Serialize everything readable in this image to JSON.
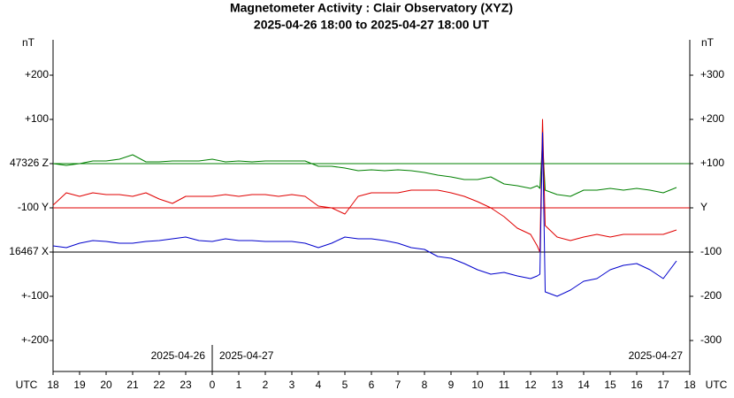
{
  "chart_data": {
    "type": "line",
    "title": "Magnetometer Activity : Clair Observatory (XYZ)",
    "subtitle": "2025-04-26 18:00 to 2025-04-27 18:00 UT",
    "ylabel": "nT",
    "y2label": "nT",
    "xlabel": "UTC",
    "xlim": [
      18,
      42
    ],
    "xticks": [
      18,
      19,
      20,
      21,
      22,
      23,
      {
        "value": 24,
        "label": "0"
      },
      {
        "value": 25,
        "label": "1"
      },
      {
        "value": 26,
        "label": "2"
      },
      {
        "value": 27,
        "label": "3"
      },
      {
        "value": 28,
        "label": "4"
      },
      {
        "value": 29,
        "label": "5"
      },
      {
        "value": 30,
        "label": "6"
      },
      {
        "value": 31,
        "label": "7"
      },
      {
        "value": 32,
        "label": "8"
      },
      {
        "value": 33,
        "label": "9"
      },
      {
        "value": 34,
        "label": "10"
      },
      {
        "value": 35,
        "label": "11"
      },
      {
        "value": 36,
        "label": "12"
      },
      {
        "value": 37,
        "label": "13"
      },
      {
        "value": 38,
        "label": "14"
      },
      {
        "value": 39,
        "label": "15"
      },
      {
        "value": 40,
        "label": "16"
      },
      {
        "value": 41,
        "label": "17"
      },
      {
        "value": 42,
        "label": "18"
      }
    ],
    "ylim": [
      -370,
      380
    ],
    "yticks": [
      {
        "value": 300,
        "label": "+300"
      },
      {
        "value": 200,
        "label": "+200"
      },
      {
        "value": 100,
        "label": "+100"
      },
      {
        "value": 0,
        "label": "Y"
      },
      -100,
      -200,
      -300
    ],
    "left_labels": [
      "+200",
      "+100",
      "47326 Z",
      "-100 Y",
      "16467 X",
      "+-100",
      "+-200"
    ],
    "left_label_colors": [
      "#008000",
      "#008000",
      "#008000",
      "#e00000",
      "#0000cc",
      "#0000cc",
      "#0000cc"
    ],
    "tick_label_color": "#e00000",
    "day_boundary": 24,
    "date_labels": [
      "2025-04-26",
      "2025-04-27",
      "2025-04-27"
    ],
    "x": [
      18,
      18.5,
      19,
      19.5,
      20,
      20.5,
      21,
      21.5,
      22,
      22.5,
      23,
      23.5,
      24,
      24.5,
      25,
      25.5,
      26,
      26.5,
      27,
      27.5,
      28,
      28.5,
      29,
      29.5,
      30,
      30.5,
      31,
      31.5,
      32,
      32.5,
      33,
      33.5,
      34,
      34.5,
      35,
      35.5,
      36,
      36.25,
      36.35,
      36.45,
      36.55,
      37,
      37.5,
      38,
      38.5,
      39,
      39.5,
      40,
      40.5,
      41,
      41.5
    ],
    "series": [
      {
        "name": "Z",
        "color": "#008000",
        "baseline": 100,
        "baseline_color": "#008000",
        "values": [
          100,
          96,
          100,
          106,
          106,
          110,
          120,
          104,
          104,
          106,
          106,
          106,
          110,
          104,
          106,
          104,
          106,
          106,
          106,
          106,
          94,
          94,
          90,
          84,
          86,
          84,
          86,
          84,
          80,
          74,
          70,
          64,
          64,
          70,
          54,
          50,
          44,
          50,
          44,
          150,
          40,
          30,
          26,
          40,
          40,
          44,
          40,
          44,
          40,
          34,
          46
        ]
      },
      {
        "name": "Y",
        "color": "#e00000",
        "baseline": 0,
        "baseline_color": "#e00000",
        "values": [
          6,
          34,
          26,
          34,
          30,
          30,
          26,
          34,
          20,
          10,
          26,
          26,
          26,
          30,
          26,
          30,
          30,
          26,
          30,
          26,
          4,
          0,
          -14,
          26,
          34,
          34,
          34,
          40,
          40,
          40,
          34,
          26,
          14,
          0,
          -20,
          -46,
          -60,
          -86,
          -100,
          200,
          -40,
          -66,
          -74,
          -66,
          -60,
          -66,
          -60,
          -60,
          -60,
          -60,
          -50
        ]
      },
      {
        "name": "X",
        "color": "#0000cc",
        "baseline": -100,
        "baseline_color": "#000000",
        "values": [
          -86,
          -90,
          -80,
          -74,
          -76,
          -80,
          -80,
          -76,
          -74,
          -70,
          -66,
          -74,
          -76,
          -70,
          -74,
          -74,
          -76,
          -76,
          -76,
          -80,
          -90,
          -80,
          -66,
          -70,
          -70,
          -74,
          -80,
          -90,
          -94,
          -110,
          -114,
          -126,
          -140,
          -150,
          -146,
          -154,
          -160,
          -154,
          -150,
          170,
          -190,
          -200,
          -186,
          -166,
          -160,
          -140,
          -130,
          -126,
          -140,
          -160,
          -120
        ]
      }
    ]
  }
}
